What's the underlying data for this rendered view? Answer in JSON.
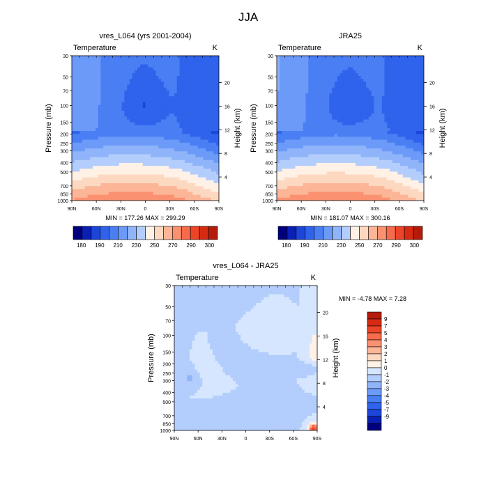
{
  "main_title": "JJA",
  "variable_label": "Temperature",
  "units_label": "K",
  "pressure_axis_label": "Pressure (mb)",
  "height_axis_label": "Height (km)",
  "pressure_ticks": [
    "30",
    "50",
    "70",
    "100",
    "150",
    "200",
    "250",
    "300",
    "400",
    "500",
    "700",
    "850",
    "1000"
  ],
  "height_ticks": [
    "4",
    "8",
    "12",
    "16",
    "20"
  ],
  "lat_ticks": [
    "90N",
    "60N",
    "30N",
    "0",
    "30S",
    "60S",
    "90S"
  ],
  "colors": {
    "cool": [
      "#00007f",
      "#0a1fb4",
      "#1c45d9",
      "#2f63ec",
      "#4a7ff4",
      "#6c9af8",
      "#90b4fa",
      "#b3cdfc",
      "#d6e6fe"
    ],
    "warm": [
      "#fff1e6",
      "#fdd8c0",
      "#fcb597",
      "#fa9170",
      "#f56b4b",
      "#ed4427",
      "#d72a12",
      "#b51b0a",
      "#7f0000"
    ]
  },
  "chart_data": [
    {
      "type": "heatmap",
      "title": "vres_L064 (yrs 2001-2004)",
      "field": "model",
      "x_ticks": [
        "90N",
        "60N",
        "30N",
        "0",
        "30S",
        "60S",
        "90S"
      ],
      "x_range": [
        90,
        -90
      ],
      "y_range_mb": [
        1000,
        30
      ],
      "stats_text": "MIN = 177.26   MAX = 299.29",
      "min": 177.26,
      "max": 299.29,
      "colorbar": {
        "levels": [
          180,
          190,
          200,
          210,
          220,
          230,
          240,
          250,
          260,
          270,
          280,
          290,
          300
        ],
        "labels": [
          "180",
          "190",
          "210",
          "230",
          "250",
          "270",
          "290",
          "300"
        ]
      }
    },
    {
      "type": "heatmap",
      "title": "JRA25",
      "field": "reanalysis",
      "x_ticks": [
        "90N",
        "60N",
        "30N",
        "0",
        "30S",
        "60S",
        "90S"
      ],
      "x_range": [
        90,
        -90
      ],
      "y_range_mb": [
        1000,
        30
      ],
      "stats_text": "MIN = 181.07   MAX = 300.16",
      "min": 181.07,
      "max": 300.16,
      "colorbar": {
        "levels": [
          180,
          190,
          200,
          210,
          220,
          230,
          240,
          250,
          260,
          270,
          280,
          290,
          300
        ],
        "labels": [
          "180",
          "190",
          "210",
          "230",
          "250",
          "270",
          "290",
          "300"
        ]
      }
    },
    {
      "type": "heatmap",
      "title": "vres_L064 - JRA25",
      "field": "difference",
      "x_ticks": [
        "90N",
        "60N",
        "30N",
        "0",
        "30S",
        "60S",
        "90S"
      ],
      "x_range": [
        90,
        -90
      ],
      "y_range_mb": [
        1000,
        30
      ],
      "stats_text": "MIN =  -4.78   MAX =   7.28",
      "min": -4.78,
      "max": 7.28,
      "colorbar": {
        "levels": [
          -9,
          -7,
          -5,
          -4,
          -3,
          -2,
          -1,
          0,
          1,
          2,
          3,
          4,
          5,
          7,
          9
        ],
        "labels": [
          "9",
          "7",
          "5",
          "4",
          "3",
          "2",
          "1",
          "0",
          "-1",
          "-2",
          "-3",
          "-4",
          "-5",
          "-7",
          "-9"
        ]
      }
    }
  ]
}
